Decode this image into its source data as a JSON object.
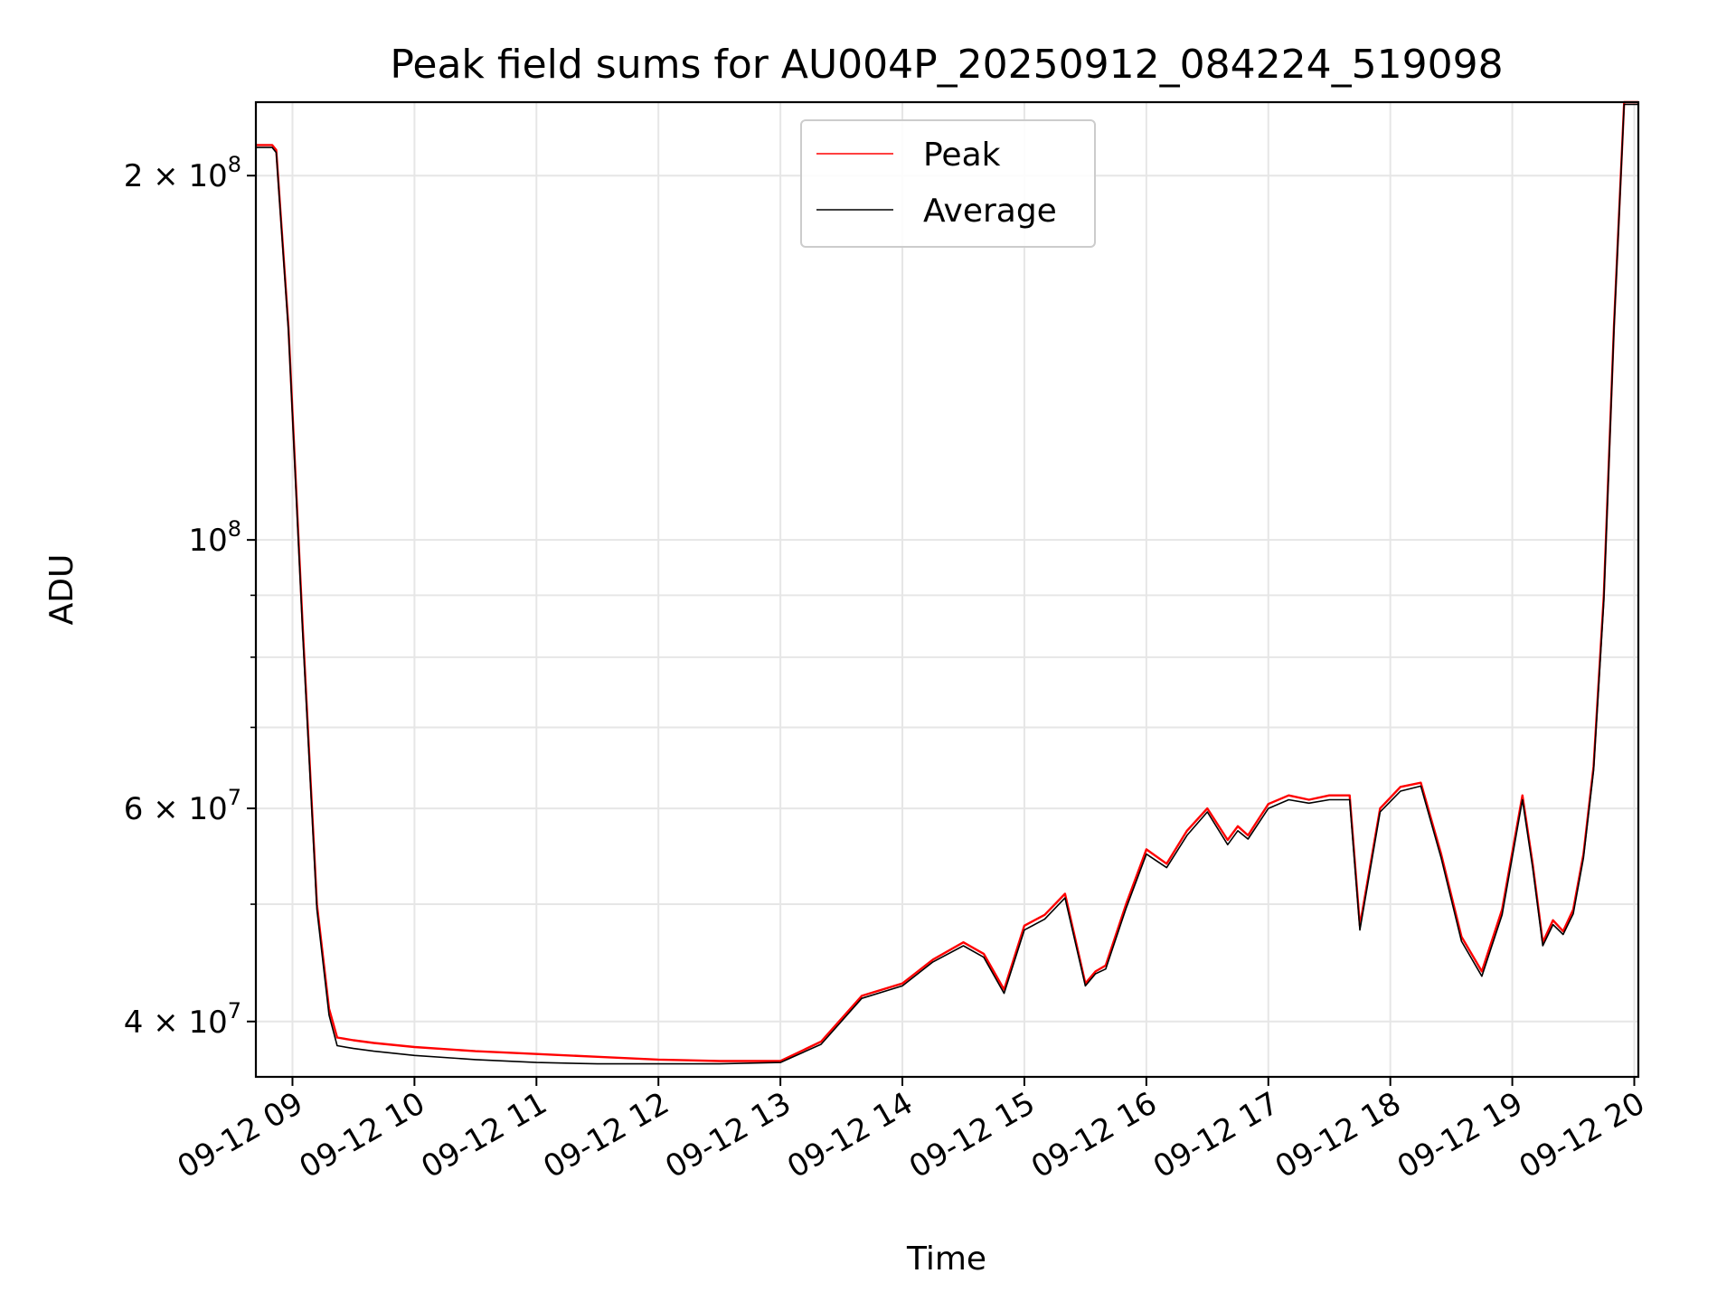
{
  "chart_data": {
    "type": "line",
    "title": "Peak field sums for AU004P_20250912_084224_519098",
    "xlabel": "Time",
    "ylabel": "ADU",
    "y_scale": "log",
    "ylim": [
      36000000,
      230000000
    ],
    "xlim": [
      "2025-09-12 08:42",
      "2025-09-12 20:02"
    ],
    "grid": true,
    "legend": {
      "placement": "top-center",
      "entries": [
        "Peak",
        "Average"
      ]
    },
    "x_ticks": [
      "09-12 09",
      "09-12 10",
      "09-12 11",
      "09-12 12",
      "09-12 13",
      "09-12 14",
      "09-12 15",
      "09-12 16",
      "09-12 17",
      "09-12 18",
      "09-12 19",
      "09-12 20"
    ],
    "y_ticks": [
      {
        "value": 40000000,
        "base": "4",
        "exp": "7"
      },
      {
        "value": 60000000,
        "base": "6",
        "exp": "7"
      },
      {
        "value": 100000000,
        "base": "",
        "exp": "8"
      },
      {
        "value": 200000000,
        "base": "2",
        "exp": "8"
      }
    ],
    "series": [
      {
        "name": "Peak",
        "color": "#ff0000",
        "x": [
          "2025-09-12 08:42",
          "2025-09-12 08:50",
          "2025-09-12 08:52",
          "2025-09-12 08:58",
          "2025-09-12 09:05",
          "2025-09-12 09:12",
          "2025-09-12 09:18",
          "2025-09-12 09:22",
          "2025-09-12 09:30",
          "2025-09-12 09:40",
          "2025-09-12 10:00",
          "2025-09-12 10:30",
          "2025-09-12 11:00",
          "2025-09-12 11:30",
          "2025-09-12 12:00",
          "2025-09-12 12:30",
          "2025-09-12 13:00",
          "2025-09-12 13:20",
          "2025-09-12 13:40",
          "2025-09-12 14:00",
          "2025-09-12 14:15",
          "2025-09-12 14:30",
          "2025-09-12 14:40",
          "2025-09-12 14:50",
          "2025-09-12 15:00",
          "2025-09-12 15:10",
          "2025-09-12 15:20",
          "2025-09-12 15:30",
          "2025-09-12 15:35",
          "2025-09-12 15:40",
          "2025-09-12 15:50",
          "2025-09-12 16:00",
          "2025-09-12 16:10",
          "2025-09-12 16:20",
          "2025-09-12 16:30",
          "2025-09-12 16:40",
          "2025-09-12 16:45",
          "2025-09-12 16:50",
          "2025-09-12 17:00",
          "2025-09-12 17:10",
          "2025-09-12 17:20",
          "2025-09-12 17:30",
          "2025-09-12 17:40",
          "2025-09-12 17:45",
          "2025-09-12 17:55",
          "2025-09-12 18:05",
          "2025-09-12 18:15",
          "2025-09-12 18:25",
          "2025-09-12 18:35",
          "2025-09-12 18:45",
          "2025-09-12 18:55",
          "2025-09-12 19:05",
          "2025-09-12 19:10",
          "2025-09-12 19:15",
          "2025-09-12 19:20",
          "2025-09-12 19:25",
          "2025-09-12 19:30",
          "2025-09-12 19:35",
          "2025-09-12 19:40",
          "2025-09-12 19:45",
          "2025-09-12 19:50",
          "2025-09-12 19:55",
          "2025-09-12 20:02"
        ],
        "y": [
          212000000,
          212000000,
          210000000,
          150000000,
          85000000,
          50000000,
          41000000,
          38800000,
          38600000,
          38400000,
          38100000,
          37800000,
          37600000,
          37400000,
          37200000,
          37100000,
          37100000,
          38500000,
          42000000,
          43000000,
          45000000,
          46500000,
          45500000,
          42500000,
          48000000,
          49000000,
          51000000,
          43000000,
          44000000,
          44500000,
          50000000,
          55500000,
          54000000,
          57500000,
          60000000,
          56500000,
          58000000,
          57000000,
          60500000,
          61500000,
          61000000,
          61500000,
          61500000,
          48000000,
          60000000,
          62500000,
          63000000,
          55000000,
          47000000,
          44000000,
          49500000,
          61500000,
          54000000,
          46500000,
          48500000,
          47500000,
          49500000,
          55000000,
          65000000,
          90000000,
          150000000,
          230000000,
          230000000
        ]
      },
      {
        "name": "Average",
        "color": "#000000",
        "x": [
          "2025-09-12 08:42",
          "2025-09-12 08:50",
          "2025-09-12 08:52",
          "2025-09-12 08:58",
          "2025-09-12 09:05",
          "2025-09-12 09:12",
          "2025-09-12 09:18",
          "2025-09-12 09:22",
          "2025-09-12 09:30",
          "2025-09-12 09:40",
          "2025-09-12 10:00",
          "2025-09-12 10:30",
          "2025-09-12 11:00",
          "2025-09-12 11:30",
          "2025-09-12 12:00",
          "2025-09-12 12:30",
          "2025-09-12 13:00",
          "2025-09-12 13:20",
          "2025-09-12 13:40",
          "2025-09-12 14:00",
          "2025-09-12 14:15",
          "2025-09-12 14:30",
          "2025-09-12 14:40",
          "2025-09-12 14:50",
          "2025-09-12 15:00",
          "2025-09-12 15:10",
          "2025-09-12 15:20",
          "2025-09-12 15:30",
          "2025-09-12 15:35",
          "2025-09-12 15:40",
          "2025-09-12 15:50",
          "2025-09-12 16:00",
          "2025-09-12 16:10",
          "2025-09-12 16:20",
          "2025-09-12 16:30",
          "2025-09-12 16:40",
          "2025-09-12 16:45",
          "2025-09-12 16:50",
          "2025-09-12 17:00",
          "2025-09-12 17:10",
          "2025-09-12 17:20",
          "2025-09-12 17:30",
          "2025-09-12 17:40",
          "2025-09-12 17:45",
          "2025-09-12 17:55",
          "2025-09-12 18:05",
          "2025-09-12 18:15",
          "2025-09-12 18:25",
          "2025-09-12 18:35",
          "2025-09-12 18:45",
          "2025-09-12 18:55",
          "2025-09-12 19:05",
          "2025-09-12 19:10",
          "2025-09-12 19:15",
          "2025-09-12 19:20",
          "2025-09-12 19:25",
          "2025-09-12 19:30",
          "2025-09-12 19:35",
          "2025-09-12 19:40",
          "2025-09-12 19:45",
          "2025-09-12 19:50",
          "2025-09-12 19:55",
          "2025-09-12 20:02"
        ],
        "y": [
          211000000,
          211000000,
          209000000,
          149000000,
          84000000,
          49500000,
          40500000,
          38200000,
          38000000,
          37800000,
          37500000,
          37200000,
          37000000,
          36900000,
          36900000,
          36900000,
          37000000,
          38300000,
          41800000,
          42800000,
          44800000,
          46200000,
          45200000,
          42200000,
          47600000,
          48600000,
          50600000,
          42800000,
          43800000,
          44200000,
          49600000,
          55000000,
          53600000,
          57000000,
          59600000,
          56000000,
          57500000,
          56600000,
          60000000,
          61000000,
          60600000,
          61000000,
          61000000,
          47600000,
          59600000,
          62000000,
          62600000,
          54600000,
          46600000,
          43600000,
          49000000,
          61000000,
          53600000,
          46200000,
          48100000,
          47200000,
          49100000,
          54600000,
          64500000,
          89000000,
          149000000,
          229000000,
          229000000
        ]
      }
    ]
  }
}
